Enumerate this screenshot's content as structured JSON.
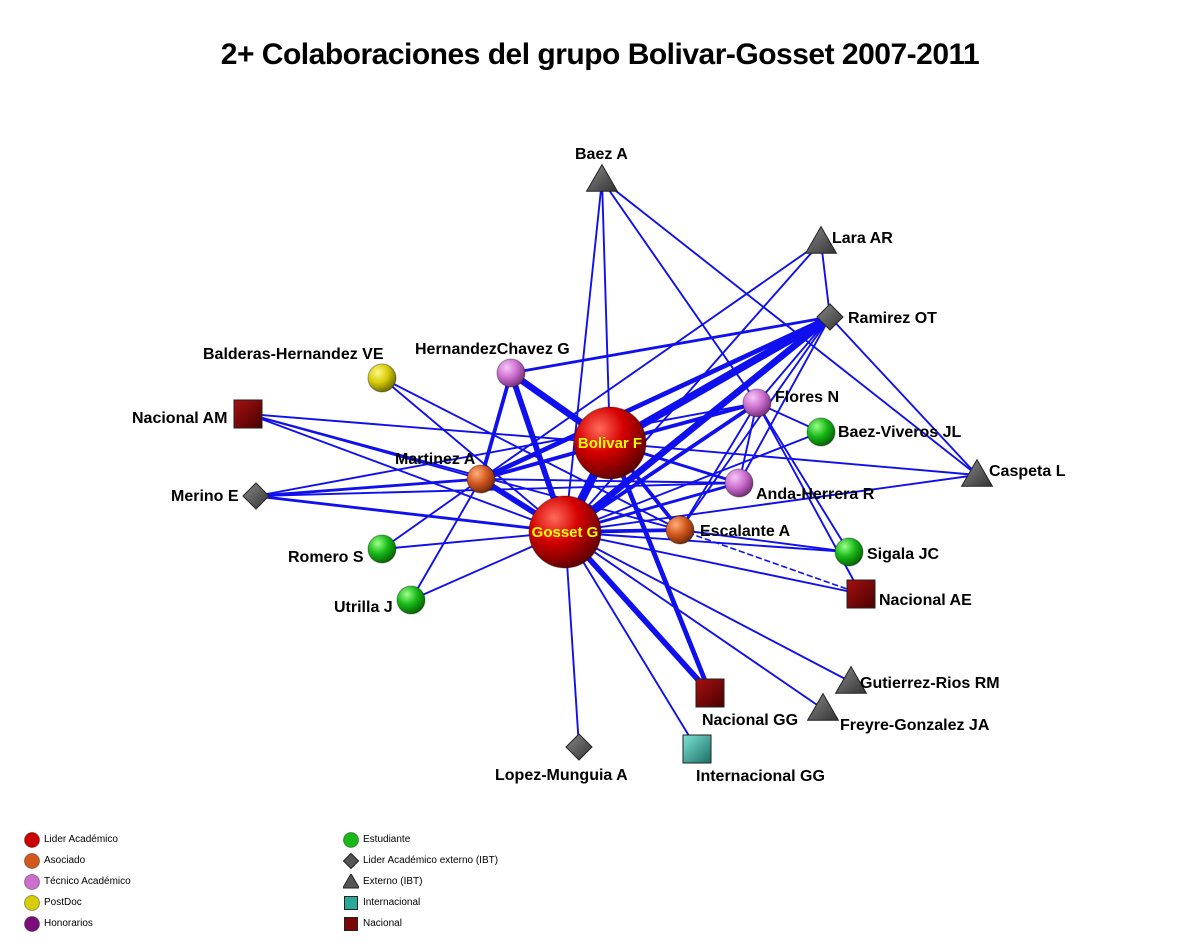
{
  "title": "2+ Colaboraciones del grupo  Bolivar-Gosset 2007-2011",
  "colors": {
    "edge": "#1010ee",
    "lider": "#cc0000",
    "asociado": "#d2581e",
    "tecnico": "#cc6fcf",
    "postdoc": "#d6cc08",
    "honorarios": "#7a0f7a",
    "estudiante": "#18b818",
    "externo": "#555555",
    "internacional": "#2aa89a",
    "nacional": "#7a0606"
  },
  "nodes": [
    {
      "id": "bolivar",
      "label": "Bolivar F",
      "category": "lider",
      "shape": "circle",
      "size": "xl",
      "inside_label": true
    },
    {
      "id": "gosset",
      "label": "Gosset G",
      "category": "lider",
      "shape": "circle",
      "size": "xl",
      "inside_label": true
    },
    {
      "id": "martinez",
      "label": "Martinez A",
      "category": "asociado",
      "shape": "circle",
      "size": "m"
    },
    {
      "id": "escalante",
      "label": "Escalante A",
      "category": "asociado",
      "shape": "circle",
      "size": "m"
    },
    {
      "id": "hernandezchavez",
      "label": "HernandezChavez G",
      "category": "tecnico",
      "shape": "circle",
      "size": "m"
    },
    {
      "id": "flores",
      "label": "Flores N",
      "category": "tecnico",
      "shape": "circle",
      "size": "m"
    },
    {
      "id": "andaherrera",
      "label": "Anda-Herrera R",
      "category": "tecnico",
      "shape": "circle",
      "size": "m"
    },
    {
      "id": "balderas",
      "label": "Balderas-Hernandez VE",
      "category": "postdoc",
      "shape": "circle",
      "size": "m"
    },
    {
      "id": "baezviveros",
      "label": "Baez-Viveros JL",
      "category": "estudiante",
      "shape": "circle",
      "size": "m"
    },
    {
      "id": "sigala",
      "label": "Sigala JC",
      "category": "estudiante",
      "shape": "circle",
      "size": "m"
    },
    {
      "id": "romero",
      "label": "Romero S",
      "category": "estudiante",
      "shape": "circle",
      "size": "m"
    },
    {
      "id": "utrilla",
      "label": "Utrilla J",
      "category": "estudiante",
      "shape": "circle",
      "size": "m"
    },
    {
      "id": "baez",
      "label": "Baez A",
      "category": "externo",
      "shape": "triangle"
    },
    {
      "id": "lara",
      "label": "Lara AR",
      "category": "externo",
      "shape": "triangle"
    },
    {
      "id": "caspeta",
      "label": "Caspeta L",
      "category": "externo",
      "shape": "triangle"
    },
    {
      "id": "gutierrez",
      "label": "Gutierrez-Rios RM",
      "category": "externo",
      "shape": "triangle"
    },
    {
      "id": "freyre",
      "label": "Freyre-Gonzalez JA",
      "category": "externo",
      "shape": "triangle"
    },
    {
      "id": "ramirez",
      "label": "Ramirez OT",
      "category": "externo",
      "shape": "diamond"
    },
    {
      "id": "merino",
      "label": "Merino E",
      "category": "externo",
      "shape": "diamond"
    },
    {
      "id": "lopezmunguia",
      "label": "Lopez-Munguia A",
      "category": "externo",
      "shape": "diamond"
    },
    {
      "id": "nacionalam",
      "label": "Nacional AM",
      "category": "nacional",
      "shape": "square"
    },
    {
      "id": "nacionalae",
      "label": "Nacional AE",
      "category": "nacional",
      "shape": "square"
    },
    {
      "id": "nacionalgg",
      "label": "Nacional GG",
      "category": "nacional",
      "shape": "square"
    },
    {
      "id": "internacionalgg",
      "label": "Internacional GG",
      "category": "internacional",
      "shape": "square"
    }
  ],
  "edges": [
    {
      "source": "bolivar",
      "target": "gosset",
      "weight": 9
    },
    {
      "source": "bolivar",
      "target": "ramirez",
      "weight": 8
    },
    {
      "source": "gosset",
      "target": "ramirez",
      "weight": 7
    },
    {
      "source": "bolivar",
      "target": "hernandezchavez",
      "weight": 7
    },
    {
      "source": "gosset",
      "target": "hernandezchavez",
      "weight": 6
    },
    {
      "source": "gosset",
      "target": "martinez",
      "weight": 6
    },
    {
      "source": "gosset",
      "target": "nacionalgg",
      "weight": 6
    },
    {
      "source": "bolivar",
      "target": "nacionalgg",
      "weight": 5
    },
    {
      "source": "martinez",
      "target": "ramirez",
      "weight": 5
    },
    {
      "source": "bolivar",
      "target": "martinez",
      "weight": 4
    },
    {
      "source": "gosset",
      "target": "flores",
      "weight": 4
    },
    {
      "source": "bolivar",
      "target": "flores",
      "weight": 4
    },
    {
      "source": "bolivar",
      "target": "escalante",
      "weight": 4
    },
    {
      "source": "gosset",
      "target": "escalante",
      "weight": 4
    },
    {
      "source": "hernandezchavez",
      "target": "martinez",
      "weight": 4
    },
    {
      "source": "gosset",
      "target": "merino",
      "weight": 3
    },
    {
      "source": "martinez",
      "target": "merino",
      "weight": 3
    },
    {
      "source": "gosset",
      "target": "andaherrera",
      "weight": 3
    },
    {
      "source": "bolivar",
      "target": "andaherrera",
      "weight": 3
    },
    {
      "source": "hernandezchavez",
      "target": "ramirez",
      "weight": 3
    },
    {
      "source": "gosset",
      "target": "sigala",
      "weight": 2
    },
    {
      "source": "escalante",
      "target": "sigala",
      "weight": 2
    },
    {
      "source": "flores",
      "target": "baezviveros",
      "weight": 2
    },
    {
      "source": "flores",
      "target": "andaherrera",
      "weight": 2
    },
    {
      "source": "ramirez",
      "target": "andaherrera",
      "weight": 2
    },
    {
      "source": "ramirez",
      "target": "flores",
      "weight": 2
    },
    {
      "source": "ramirez",
      "target": "escalante",
      "weight": 2
    },
    {
      "source": "lara",
      "target": "ramirez",
      "weight": 2
    },
    {
      "source": "ramirez",
      "target": "caspeta",
      "weight": 2
    },
    {
      "source": "bolivar",
      "target": "baez",
      "weight": 2
    },
    {
      "source": "baez",
      "target": "flores",
      "weight": 2
    },
    {
      "source": "baez",
      "target": "caspeta",
      "weight": 2
    },
    {
      "source": "gosset",
      "target": "lara",
      "weight": 2
    },
    {
      "source": "martinez",
      "target": "lara",
      "weight": 2
    },
    {
      "source": "gosset",
      "target": "baezviveros",
      "weight": 2
    },
    {
      "source": "gosset",
      "target": "caspeta",
      "weight": 2
    },
    {
      "source": "bolivar",
      "target": "caspeta",
      "weight": 2
    },
    {
      "source": "martinez",
      "target": "andaherrera",
      "weight": 2
    },
    {
      "source": "merino",
      "target": "andaherrera",
      "weight": 2
    },
    {
      "source": "martinez",
      "target": "romero",
      "weight": 2
    },
    {
      "source": "martinez",
      "target": "utrilla",
      "weight": 2
    },
    {
      "source": "gosset",
      "target": "romero",
      "weight": 2
    },
    {
      "source": "gosset",
      "target": "utrilla",
      "weight": 2
    },
    {
      "source": "balderas",
      "target": "gosset",
      "weight": 2
    },
    {
      "source": "balderas",
      "target": "escalante",
      "weight": 2
    },
    {
      "source": "nacionalam",
      "target": "gosset",
      "weight": 2
    },
    {
      "source": "nacionalam",
      "target": "bolivar",
      "weight": 2
    },
    {
      "source": "nacionalam",
      "target": "martinez",
      "weight": 2
    },
    {
      "source": "nacionalam",
      "target": "escalante",
      "weight": 2
    },
    {
      "source": "gosset",
      "target": "nacionalae",
      "weight": 2
    },
    {
      "source": "escalante",
      "target": "nacionalae",
      "weight": 1,
      "dashed": true
    },
    {
      "source": "flores",
      "target": "nacionalae",
      "weight": 2
    },
    {
      "source": "flores",
      "target": "sigala",
      "weight": 2
    },
    {
      "source": "gosset",
      "target": "lopezmunguia",
      "weight": 2
    },
    {
      "source": "gosset",
      "target": "internacionalgg",
      "weight": 2
    },
    {
      "source": "gosset",
      "target": "freyre",
      "weight": 2
    },
    {
      "source": "gosset",
      "target": "gutierrez",
      "weight": 2
    },
    {
      "source": "flores",
      "target": "escalante",
      "weight": 2
    },
    {
      "source": "merino",
      "target": "flores",
      "weight": 2
    },
    {
      "source": "baez",
      "target": "gosset",
      "weight": 2
    }
  ],
  "legend": {
    "left": [
      {
        "label": "Lider Académico",
        "category": "lider",
        "shape": "circle"
      },
      {
        "label": "Asociado",
        "category": "asociado",
        "shape": "circle"
      },
      {
        "label": "Técnico Académico",
        "category": "tecnico",
        "shape": "circle"
      },
      {
        "label": "PostDoc",
        "category": "postdoc",
        "shape": "circle"
      },
      {
        "label": "Honorarios",
        "category": "honorarios",
        "shape": "circle"
      }
    ],
    "right": [
      {
        "label": "Estudiante",
        "category": "estudiante",
        "shape": "circle"
      },
      {
        "label": "Lider Académico externo (IBT)",
        "category": "externo",
        "shape": "diamond"
      },
      {
        "label": "Externo (IBT)",
        "category": "externo",
        "shape": "triangle"
      },
      {
        "label": "Internacional",
        "category": "internacional",
        "shape": "square"
      },
      {
        "label": "Nacional",
        "category": "nacional",
        "shape": "square"
      }
    ]
  }
}
